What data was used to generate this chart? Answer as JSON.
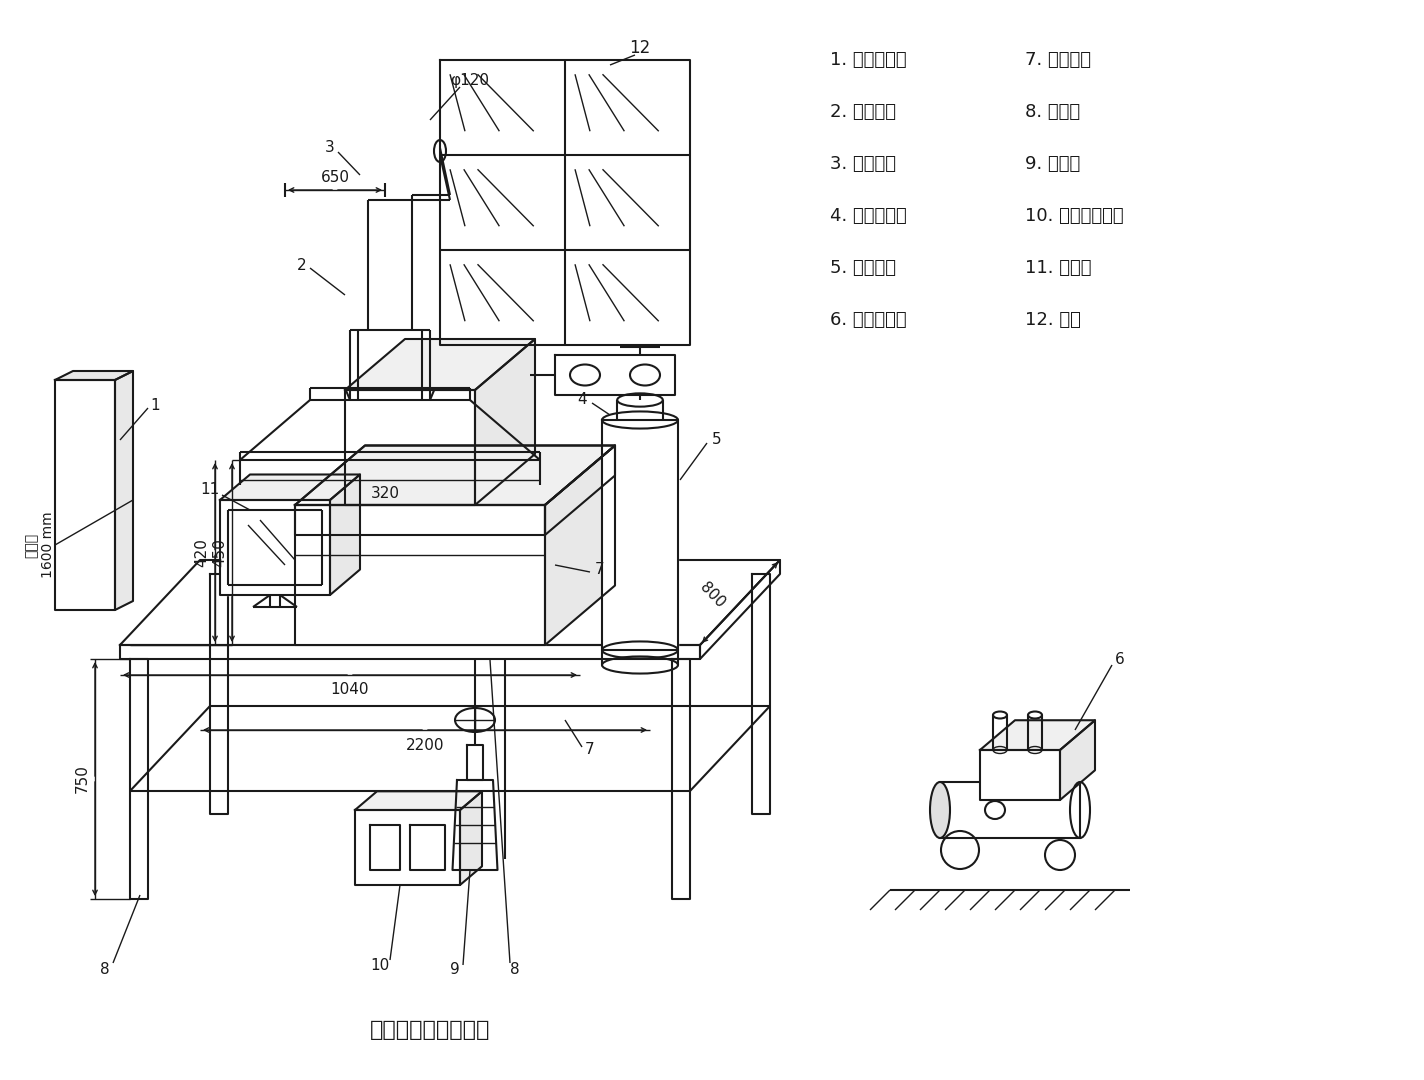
{
  "title": "附图一：平面布置图",
  "bg_color": "#ffffff",
  "line_color": "#1a1a1a",
  "legend": [
    [
      "1. 室内配电盘",
      "7. 仪器主机"
    ],
    [
      "2. 风机支架",
      "8. 工作台"
    ],
    [
      "3. 风机管道",
      "9. 废液桶"
    ],
    [
      "4. 乙炔减压阀",
      "10. 交流稳压电源"
    ],
    [
      "5. 高纯乙炔",
      "11. 计算机"
    ],
    [
      "6. 空气压缩机",
      "12. 窗户"
    ]
  ],
  "figsize": [
    14.24,
    10.8
  ],
  "dpi": 100
}
